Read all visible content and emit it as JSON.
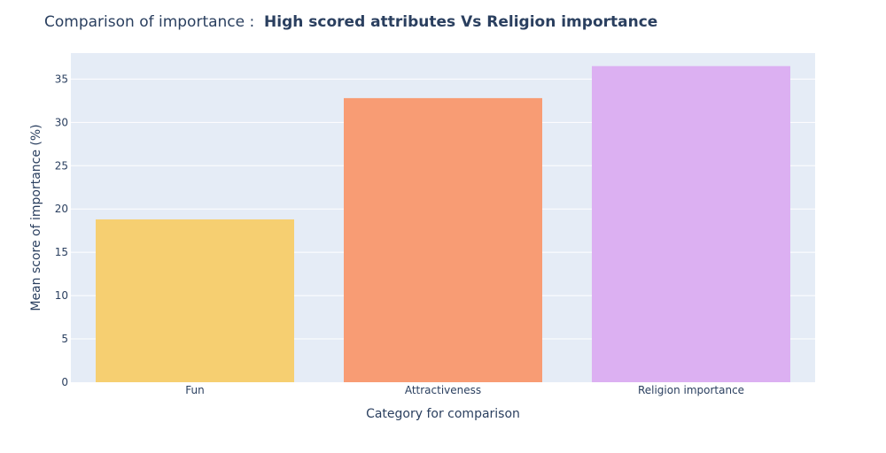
{
  "chart_data": {
    "type": "bar",
    "title_prefix": "Comparison of importance :  ",
    "title_main": "High scored attributes Vs Religion importance",
    "xlabel": "Category for comparison",
    "ylabel": "Mean score of importance (%)",
    "categories": [
      "Fun",
      "Attractiveness",
      "Religion importance"
    ],
    "values": [
      18.8,
      32.8,
      36.5
    ],
    "colors": [
      "#f6cf71",
      "#f89c74",
      "#dcb0f2"
    ],
    "ylim": [
      0,
      38
    ],
    "yticks": [
      0,
      5,
      10,
      15,
      20,
      25,
      30,
      35
    ],
    "ytick_labels": [
      "0",
      "5",
      "10",
      "15",
      "20",
      "25",
      "30",
      "35"
    ],
    "grid": true,
    "plot_background": "#e5ecf6",
    "gridline_color": "#ffffff",
    "text_color": "#2a3f5f",
    "legend": "none"
  }
}
